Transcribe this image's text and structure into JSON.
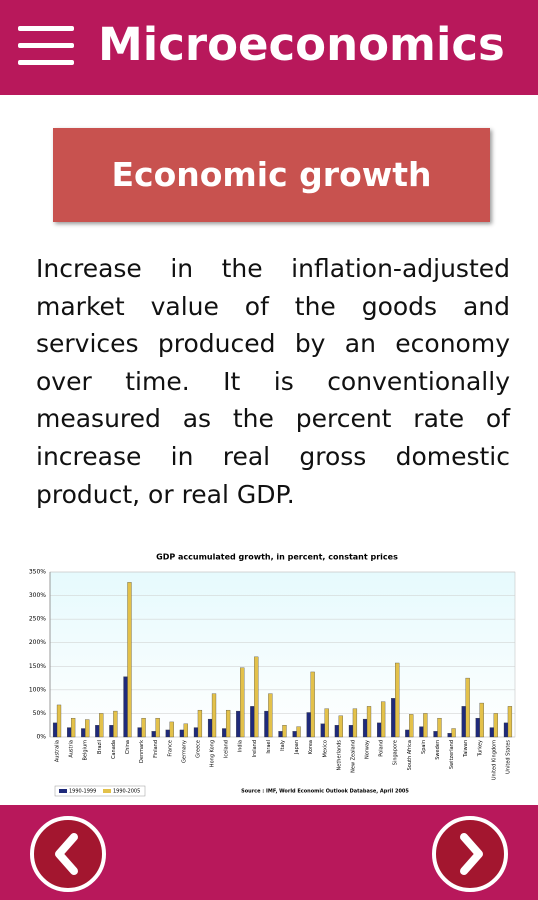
{
  "header": {
    "title": "Microeconomics"
  },
  "card": {
    "title": "Economic growth"
  },
  "body": {
    "text": "Increase in the inflation-adjusted market value of the goods and services produced by an economy over time. It is conventionally measured as the percent rate of increase in real gross domestic product, or real GDP."
  },
  "chart_data": {
    "type": "bar",
    "title": "GDP accumulated growth, in percent, constant prices",
    "source": "Source : IMF, World Economic Outlook Database, April 2005",
    "categories": [
      "Australia",
      "Austria",
      "Belgium",
      "Brazil",
      "Canada",
      "China",
      "Denmark",
      "Finland",
      "France",
      "Germany",
      "Greece",
      "Hong Kong",
      "Iceland",
      "India",
      "Ireland",
      "Israel",
      "Italy",
      "Japan",
      "Korea",
      "Mexico",
      "Netherlands",
      "New Zealand",
      "Norway",
      "Poland",
      "Singapore",
      "South Africa",
      "Spain",
      "Sweden",
      "Switzerland",
      "Taiwan",
      "Turkey",
      "United Kingdom",
      "United States"
    ],
    "series": [
      {
        "name": "1990-1999",
        "color": "#1f2a7a",
        "values": [
          30,
          20,
          18,
          25,
          25,
          128,
          20,
          12,
          15,
          15,
          20,
          38,
          18,
          55,
          65,
          55,
          12,
          12,
          52,
          28,
          25,
          25,
          38,
          30,
          82,
          15,
          22,
          12,
          8,
          65,
          40,
          20,
          30
        ]
      },
      {
        "name": "1990-2005",
        "color": "#e3c14a",
        "values": [
          68,
          40,
          37,
          50,
          55,
          328,
          40,
          40,
          32,
          28,
          57,
          92,
          57,
          147,
          170,
          92,
          25,
          22,
          138,
          60,
          45,
          60,
          65,
          75,
          157,
          48,
          50,
          40,
          18,
          125,
          72,
          50,
          65
        ]
      }
    ],
    "ylim": [
      0,
      350
    ],
    "yticks": [
      {
        "value": 0,
        "label": "0%"
      },
      {
        "value": 50,
        "label": "50%"
      },
      {
        "value": 100,
        "label": "100%"
      },
      {
        "value": 150,
        "label": "150%"
      },
      {
        "value": 200,
        "label": "200%"
      },
      {
        "value": 250,
        "label": "250%"
      },
      {
        "value": 300,
        "label": "300%"
      },
      {
        "value": 350,
        "label": "350%"
      }
    ],
    "grid": true,
    "legend": "bottom-left"
  }
}
